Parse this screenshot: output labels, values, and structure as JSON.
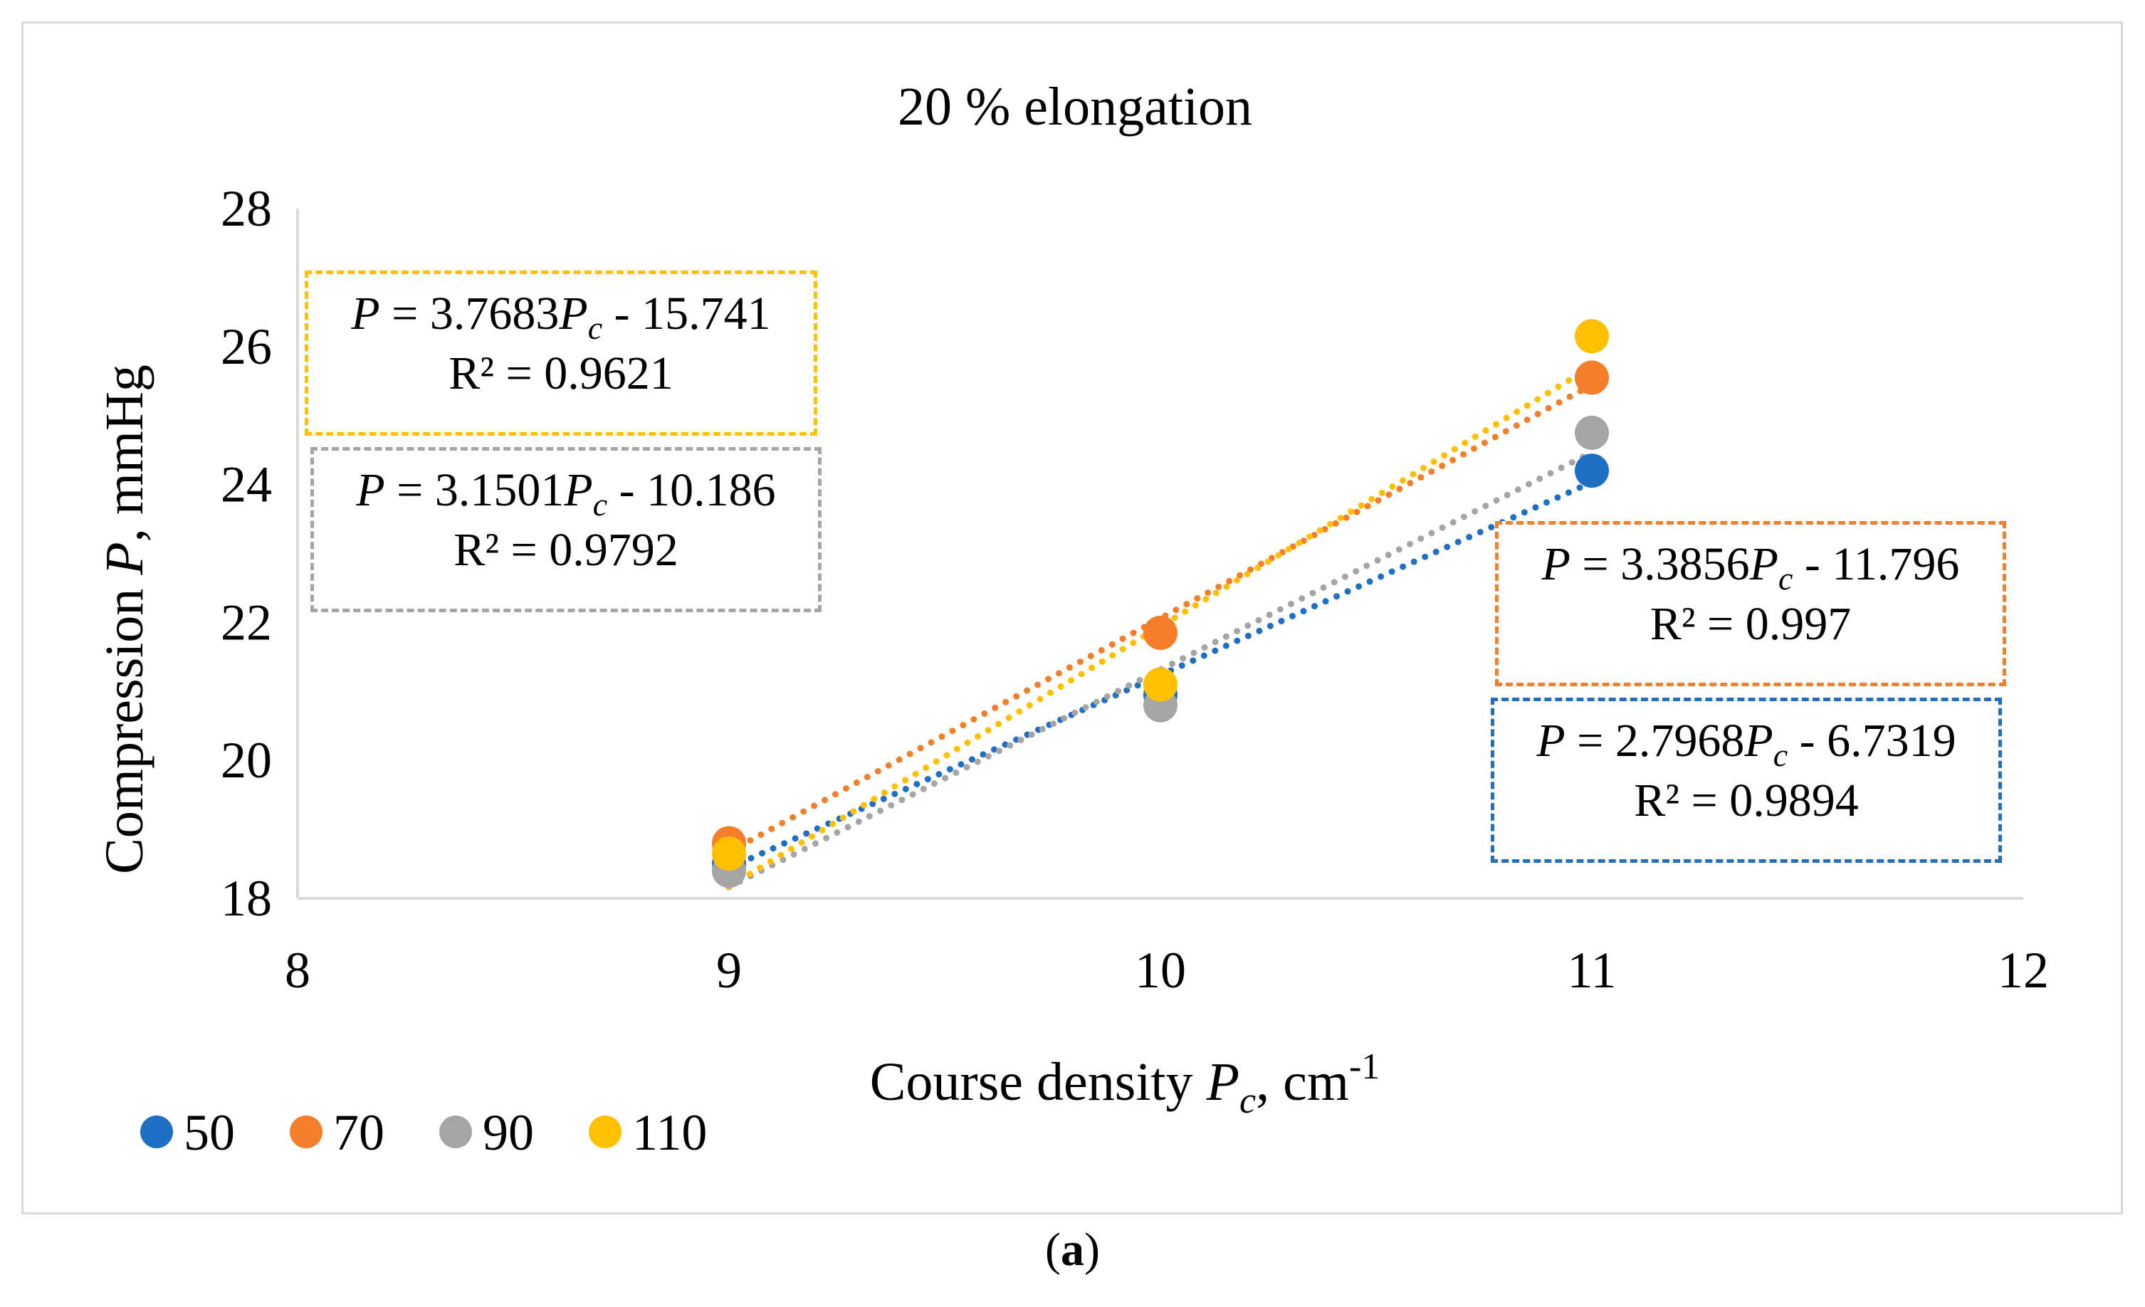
{
  "chart_data": {
    "type": "scatter",
    "title": "20 % elongation",
    "xlabel": {
      "prefix": "Course density ",
      "var": "P",
      "sub": "c",
      "suffix": ", cm",
      "sup": "-1"
    },
    "ylabel": {
      "prefix": "Compression ",
      "var": "P",
      "suffix": ", mmHg"
    },
    "xlim": [
      8,
      12
    ],
    "ylim": [
      18,
      28
    ],
    "xticks": [
      8,
      9,
      10,
      11,
      12
    ],
    "yticks": [
      18,
      20,
      22,
      24,
      26,
      28
    ],
    "x": [
      9,
      10,
      11
    ],
    "series": [
      {
        "name": "50",
        "color": "#1f6fc5",
        "values": [
          18.5,
          20.95,
          24.2
        ],
        "trend": {
          "slope": 2.7968,
          "intercept": -6.7319,
          "r2": "0.9894",
          "equation": {
            "var": "P",
            "eq": " = 2.7968",
            "sub": "c",
            "rest": " - 6.7319"
          },
          "r2_label": "R² = 0.9894"
        }
      },
      {
        "name": "70",
        "color": "#f47e2a",
        "values": [
          18.8,
          21.85,
          25.55
        ],
        "trend": {
          "slope": 3.3856,
          "intercept": -11.796,
          "r2": "0.997",
          "equation": {
            "var": "P",
            "eq": " = 3.3856",
            "sub": "c",
            "rest": " - 11.796"
          },
          "r2_label": "R² = 0.997"
        }
      },
      {
        "name": "90",
        "color": "#a5a5a5",
        "values": [
          18.4,
          20.8,
          24.75
        ],
        "trend": {
          "slope": 3.1501,
          "intercept": -10.186,
          "r2": "0.9792",
          "equation": {
            "var": "P",
            "eq": " = 3.1501",
            "sub": "c",
            "rest": " - 10.186"
          },
          "r2_label": "R² = 0.9792"
        }
      },
      {
        "name": "110",
        "color": "#ffc000",
        "values": [
          18.65,
          21.1,
          26.15
        ],
        "trend": {
          "slope": 3.7683,
          "intercept": -15.741,
          "r2": "0.9621",
          "equation": {
            "var": "P",
            "eq": " = 3.7683",
            "sub": "c",
            "rest": " - 15.741"
          },
          "r2_label": "R² = 0.9621"
        }
      }
    ],
    "legend_position": "bottom-left"
  },
  "caption": {
    "open": "(",
    "label": "a",
    "close": ")"
  }
}
